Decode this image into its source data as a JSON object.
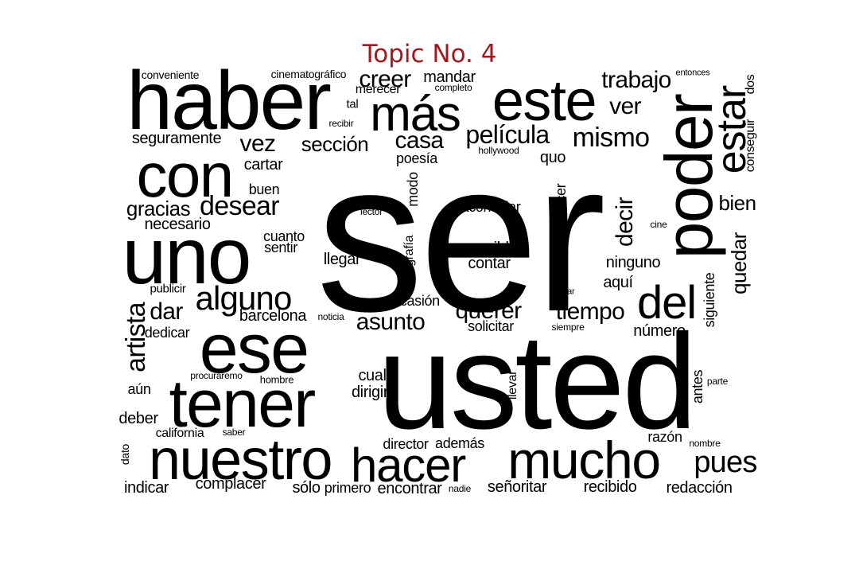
{
  "title": "Topic No. 4",
  "title_color": "#a3171f",
  "word_color": "#000000",
  "words": [
    {
      "text": "ser",
      "weight": 1.0,
      "vertical": false
    },
    {
      "text": "usted",
      "weight": 0.92,
      "vertical": false
    },
    {
      "text": "haber",
      "weight": 0.56,
      "vertical": false
    },
    {
      "text": "uno",
      "weight": 0.54,
      "vertical": false
    },
    {
      "text": "este",
      "weight": 0.43,
      "vertical": false
    },
    {
      "text": "con",
      "weight": 0.47,
      "vertical": false
    },
    {
      "text": "ese",
      "weight": 0.46,
      "vertical": false
    },
    {
      "text": "tener",
      "weight": 0.45,
      "vertical": false
    },
    {
      "text": "nuestro",
      "weight": 0.41,
      "vertical": false
    },
    {
      "text": "mucho",
      "weight": 0.38,
      "vertical": false
    },
    {
      "text": "hacer",
      "weight": 0.35,
      "vertical": false
    },
    {
      "text": "poder",
      "weight": 0.47,
      "vertical": true
    },
    {
      "text": "más",
      "weight": 0.35,
      "vertical": false
    },
    {
      "text": "del",
      "weight": 0.33,
      "vertical": false
    },
    {
      "text": "estar",
      "weight": 0.32,
      "vertical": true
    },
    {
      "text": "alguno",
      "weight": 0.2,
      "vertical": false
    },
    {
      "text": "pues",
      "weight": 0.18,
      "vertical": false
    },
    {
      "text": "artista",
      "weight": 0.18,
      "vertical": true
    },
    {
      "text": "mismo",
      "weight": 0.16,
      "vertical": false
    },
    {
      "text": "película",
      "weight": 0.16,
      "vertical": false
    },
    {
      "text": "desear",
      "weight": 0.16,
      "vertical": false
    },
    {
      "text": "creer",
      "weight": 0.14,
      "vertical": false
    },
    {
      "text": "trabajo",
      "weight": 0.14,
      "vertical": false
    },
    {
      "text": "ver",
      "weight": 0.14,
      "vertical": false
    },
    {
      "text": "vez",
      "weight": 0.14,
      "vertical": false
    },
    {
      "text": "casa",
      "weight": 0.14,
      "vertical": false
    },
    {
      "text": "tiempo",
      "weight": 0.14,
      "vertical": false
    },
    {
      "text": "querer",
      "weight": 0.14,
      "vertical": false
    },
    {
      "text": "asunto",
      "weight": 0.14,
      "vertical": false
    },
    {
      "text": "dar",
      "weight": 0.14,
      "vertical": false
    },
    {
      "text": "decir",
      "weight": 0.14,
      "vertical": true
    },
    {
      "text": "quedar",
      "weight": 0.12,
      "vertical": true
    },
    {
      "text": "gracias",
      "weight": 0.12,
      "vertical": false
    },
    {
      "text": "sección",
      "weight": 0.11,
      "vertical": false
    },
    {
      "text": "bien",
      "weight": 0.11,
      "vertical": false
    },
    {
      "text": "mandar",
      "weight": 0.09,
      "vertical": false
    },
    {
      "text": "seguramente",
      "weight": 0.09,
      "vertical": false
    },
    {
      "text": "cartar",
      "weight": 0.09,
      "vertical": false
    },
    {
      "text": "buen",
      "weight": 0.08,
      "vertical": false
    },
    {
      "text": "necesario",
      "weight": 0.09,
      "vertical": false
    },
    {
      "text": "barcelona",
      "weight": 0.09,
      "vertical": false
    },
    {
      "text": "dedicar",
      "weight": 0.08,
      "vertical": false
    },
    {
      "text": "aún",
      "weight": 0.08,
      "vertical": false
    },
    {
      "text": "deber",
      "weight": 0.09,
      "vertical": false
    },
    {
      "text": "cual",
      "weight": 0.09,
      "vertical": false
    },
    {
      "text": "dirigir",
      "weight": 0.09,
      "vertical": false
    },
    {
      "text": "posible",
      "weight": 0.09,
      "vertical": false
    },
    {
      "text": "contar",
      "weight": 0.09,
      "vertical": false
    },
    {
      "text": "llegar",
      "weight": 0.09,
      "vertical": false
    },
    {
      "text": "aconsejar",
      "weight": 0.08,
      "vertical": false
    },
    {
      "text": "ninguno",
      "weight": 0.09,
      "vertical": false
    },
    {
      "text": "aquí",
      "weight": 0.09,
      "vertical": false
    },
    {
      "text": "número",
      "weight": 0.09,
      "vertical": false
    },
    {
      "text": "solicitar",
      "weight": 0.08,
      "vertical": false
    },
    {
      "text": "poesía",
      "weight": 0.08,
      "vertical": false
    },
    {
      "text": "quo",
      "weight": 0.09,
      "vertical": false
    },
    {
      "text": "modo",
      "weight": 0.08,
      "vertical": true
    },
    {
      "text": "parecer",
      "weight": 0.08,
      "vertical": true
    },
    {
      "text": "cuanto",
      "weight": 0.08,
      "vertical": false
    },
    {
      "text": "sentir",
      "weight": 0.08,
      "vertical": false
    },
    {
      "text": "ocasión",
      "weight": 0.08,
      "vertical": false
    },
    {
      "text": "fotografía",
      "weight": 0.07,
      "vertical": true
    },
    {
      "text": "siguiente",
      "weight": 0.08,
      "vertical": true
    },
    {
      "text": "llevar",
      "weight": 0.08,
      "vertical": true
    },
    {
      "text": "antes",
      "weight": 0.08,
      "vertical": true
    },
    {
      "text": "conseguir",
      "weight": 0.07,
      "vertical": true
    },
    {
      "text": "dos",
      "weight": 0.07,
      "vertical": true
    },
    {
      "text": "california",
      "weight": 0.07,
      "vertical": false
    },
    {
      "text": "director",
      "weight": 0.08,
      "vertical": false
    },
    {
      "text": "además",
      "weight": 0.08,
      "vertical": false
    },
    {
      "text": "razón",
      "weight": 0.08,
      "vertical": false
    },
    {
      "text": "indicar",
      "weight": 0.09,
      "vertical": false
    },
    {
      "text": "complacer",
      "weight": 0.09,
      "vertical": false
    },
    {
      "text": "sólo",
      "weight": 0.09,
      "vertical": false
    },
    {
      "text": "primero",
      "weight": 0.08,
      "vertical": false
    },
    {
      "text": "encontrar",
      "weight": 0.09,
      "vertical": false
    },
    {
      "text": "señoritar",
      "weight": 0.09,
      "vertical": false
    },
    {
      "text": "recibido",
      "weight": 0.09,
      "vertical": false
    },
    {
      "text": "redacción",
      "weight": 0.09,
      "vertical": false
    },
    {
      "text": "conveniente",
      "weight": 0.06,
      "vertical": false
    },
    {
      "text": "cinematográfico",
      "weight": 0.06,
      "vertical": false
    },
    {
      "text": "merecer",
      "weight": 0.07,
      "vertical": false
    },
    {
      "text": "completo",
      "weight": 0.05,
      "vertical": false
    },
    {
      "text": "tal",
      "weight": 0.06,
      "vertical": false
    },
    {
      "text": "recibir",
      "weight": 0.05,
      "vertical": false
    },
    {
      "text": "entonces",
      "weight": 0.05,
      "vertical": false
    },
    {
      "text": "hollywood",
      "weight": 0.05,
      "vertical": false
    },
    {
      "text": "lector",
      "weight": 0.05,
      "vertical": false
    },
    {
      "text": "cine",
      "weight": 0.05,
      "vertical": false
    },
    {
      "text": "publicir",
      "weight": 0.06,
      "vertical": false
    },
    {
      "text": "noticia",
      "weight": 0.05,
      "vertical": false
    },
    {
      "text": "tomar",
      "weight": 0.05,
      "vertical": false
    },
    {
      "text": "siempre",
      "weight": 0.05,
      "vertical": false
    },
    {
      "text": "procuraremo",
      "weight": 0.05,
      "vertical": false
    },
    {
      "text": "hombre",
      "weight": 0.05,
      "vertical": false
    },
    {
      "text": "parte",
      "weight": 0.05,
      "vertical": false
    },
    {
      "text": "saber",
      "weight": 0.05,
      "vertical": false
    },
    {
      "text": "dato",
      "weight": 0.05,
      "vertical": true
    },
    {
      "text": "nombre",
      "weight": 0.05,
      "vertical": false
    },
    {
      "text": "nadie",
      "weight": 0.05,
      "vertical": false
    }
  ]
}
